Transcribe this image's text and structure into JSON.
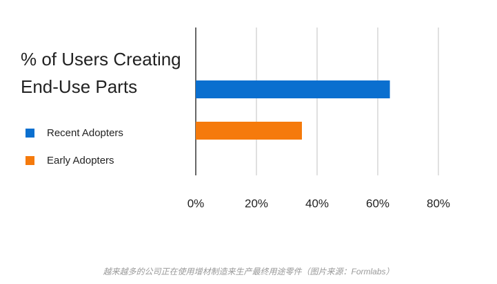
{
  "chart_data": {
    "type": "hbar",
    "title": "% of Users Creating End-Use Parts",
    "series": [
      {
        "name": "Recent Adopters",
        "color": "#0a6fcf",
        "values": [
          64
        ]
      },
      {
        "name": "Early Adopters",
        "color": "#f57a0c",
        "values": [
          35
        ]
      }
    ],
    "xlim": [
      0,
      80
    ],
    "xticks": [
      {
        "value": 0,
        "label": "0%"
      },
      {
        "value": 20,
        "label": "20%"
      },
      {
        "value": 40,
        "label": "40%"
      },
      {
        "value": 60,
        "label": "60%"
      },
      {
        "value": 80,
        "label": "80%"
      }
    ],
    "grid": true,
    "legend": "left",
    "caption": "越来越多的公司正在使用增材制造来生产最终用途零件（图片来源：Formlabs）"
  }
}
